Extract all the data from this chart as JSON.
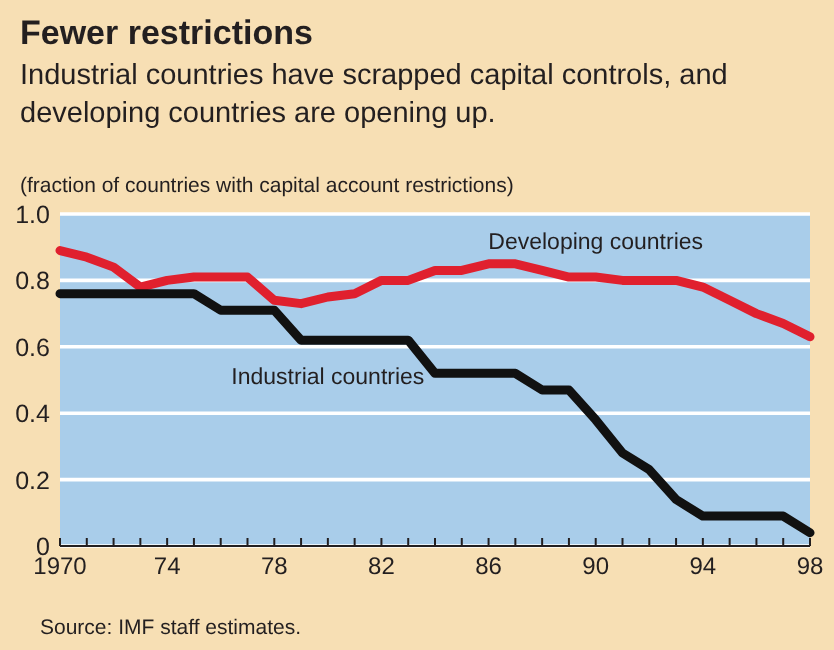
{
  "chart_data": {
    "type": "line",
    "title": "Fewer restrictions",
    "subtitle": "Industrial countries have scrapped capital controls, and developing countries are opening up.",
    "ylabel": "(fraction of countries with capital account restrictions)",
    "x": [
      1970,
      1971,
      1972,
      1973,
      1974,
      1975,
      1976,
      1977,
      1978,
      1979,
      1980,
      1981,
      1982,
      1983,
      1984,
      1985,
      1986,
      1987,
      1988,
      1989,
      1990,
      1991,
      1992,
      1993,
      1994,
      1995,
      1996,
      1997,
      1998
    ],
    "series": [
      {
        "name": "Developing countries",
        "color": "#e0202e",
        "values": [
          0.89,
          0.87,
          0.84,
          0.78,
          0.8,
          0.81,
          0.81,
          0.81,
          0.74,
          0.73,
          0.75,
          0.76,
          0.8,
          0.8,
          0.83,
          0.83,
          0.85,
          0.85,
          0.83,
          0.81,
          0.81,
          0.8,
          0.8,
          0.8,
          0.78,
          0.74,
          0.7,
          0.67,
          0.63
        ]
      },
      {
        "name": "Industrial countries",
        "color": "#111111",
        "values": [
          0.76,
          0.76,
          0.76,
          0.76,
          0.76,
          0.76,
          0.71,
          0.71,
          0.71,
          0.62,
          0.62,
          0.62,
          0.62,
          0.62,
          0.52,
          0.52,
          0.52,
          0.52,
          0.47,
          0.47,
          0.38,
          0.28,
          0.23,
          0.14,
          0.09,
          0.09,
          0.09,
          0.09,
          0.04
        ]
      }
    ],
    "xlim": [
      1970,
      1998
    ],
    "xticks": [
      {
        "value": 1970,
        "label": "1970"
      },
      {
        "value": 1971,
        "label": null
      },
      {
        "value": 1972,
        "label": null
      },
      {
        "value": 1973,
        "label": null
      },
      {
        "value": 1974,
        "label": "74"
      },
      {
        "value": 1975,
        "label": null
      },
      {
        "value": 1976,
        "label": null
      },
      {
        "value": 1977,
        "label": null
      },
      {
        "value": 1978,
        "label": "78"
      },
      {
        "value": 1979,
        "label": null
      },
      {
        "value": 1980,
        "label": null
      },
      {
        "value": 1981,
        "label": null
      },
      {
        "value": 1982,
        "label": "82"
      },
      {
        "value": 1983,
        "label": null
      },
      {
        "value": 1984,
        "label": null
      },
      {
        "value": 1985,
        "label": null
      },
      {
        "value": 1986,
        "label": "86"
      },
      {
        "value": 1987,
        "label": null
      },
      {
        "value": 1988,
        "label": null
      },
      {
        "value": 1989,
        "label": null
      },
      {
        "value": 1990,
        "label": "90"
      },
      {
        "value": 1991,
        "label": null
      },
      {
        "value": 1992,
        "label": null
      },
      {
        "value": 1993,
        "label": null
      },
      {
        "value": 1994,
        "label": "94"
      },
      {
        "value": 1995,
        "label": null
      },
      {
        "value": 1996,
        "label": null
      },
      {
        "value": 1997,
        "label": null
      },
      {
        "value": 1998,
        "label": "98"
      }
    ],
    "ylim": [
      0,
      1
    ],
    "yticks": [
      0,
      0.2,
      0.4,
      0.6,
      0.8,
      {
        "value": 1,
        "label": "1.0"
      }
    ],
    "grid": "y",
    "marker": "none",
    "line_style": "solid",
    "annotations": [
      "Source: IMF staff estimates."
    ]
  }
}
